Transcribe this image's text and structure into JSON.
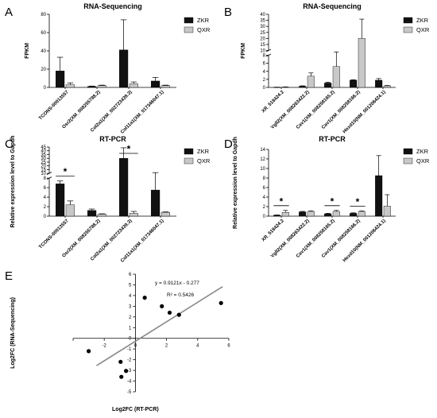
{
  "colors": {
    "ZKR": "#111111",
    "QXR": "#c8c8c8"
  },
  "legend": [
    "ZKR",
    "QXR"
  ],
  "chart_data": [
    {
      "panel": "A",
      "type": "bar",
      "title": "RNA-Sequencing",
      "ylabel": "FPKM",
      "ylim": [
        0,
        80
      ],
      "yticks": [
        0,
        20,
        40,
        60,
        80
      ],
      "categories": [
        "TCONS-00013557",
        "Osr2(XM_008255788.2)",
        "Col2a1(XM_002723439.3)",
        "Col11a1(XM_017346047.1)"
      ],
      "series": [
        {
          "name": "ZKR",
          "values": [
            18,
            1,
            41,
            7
          ],
          "errors": [
            15,
            0.5,
            33,
            4
          ]
        },
        {
          "name": "QXR",
          "values": [
            3,
            2,
            4,
            2
          ],
          "errors": [
            2,
            0.5,
            2,
            0.5
          ]
        }
      ]
    },
    {
      "panel": "B",
      "type": "bar",
      "title": "RNA-Sequencing",
      "ylabel": "FPKM",
      "ylim": [
        0,
        40
      ],
      "ybreak": [
        8,
        10
      ],
      "yticks_lower": [
        0,
        2,
        4,
        6,
        8
      ],
      "yticks_upper": [
        10,
        15,
        20,
        25,
        30,
        35,
        40
      ],
      "categories": [
        "XR_518424.2",
        "Vgll2(XM_008263422.2)",
        "Cav1(XM_008258165.2)",
        "Cav1(XM_008258166.2)",
        "Hoxd10(NM_001206424.1)"
      ],
      "series": [
        {
          "name": "ZKR",
          "values": [
            0.05,
            0.3,
            1.1,
            1.8,
            1.8
          ],
          "errors": [
            0.02,
            0.1,
            0.2,
            0.1,
            0.4
          ]
        },
        {
          "name": "QXR",
          "values": [
            0.1,
            2.8,
            5.2,
            20,
            0.4
          ],
          "errors": [
            0.05,
            0.8,
            3.6,
            16,
            0.1
          ]
        }
      ]
    },
    {
      "panel": "C",
      "type": "bar",
      "title": "RT-PCR",
      "ylabel": "Relative expression level to Gapdh",
      "ylim": [
        0,
        45
      ],
      "ybreak": [
        8,
        10
      ],
      "yticks_lower": [
        0,
        2,
        4,
        6,
        8
      ],
      "yticks_upper": [
        10,
        15,
        20,
        25,
        30,
        35,
        40,
        45
      ],
      "categories": [
        "TCONS-00013557",
        "Osr2(XM_008255788.2)",
        "Col2a1(XM_002723439.3)",
        "Col11a1(XM_017346047.1)"
      ],
      "series": [
        {
          "name": "ZKR",
          "values": [
            6.8,
            1.2,
            30,
            5.5
          ],
          "errors": [
            0.6,
            0.3,
            14,
            5.5
          ]
        },
        {
          "name": "QXR",
          "values": [
            2.4,
            0.4,
            0.6,
            0.8
          ],
          "errors": [
            0.8,
            0.1,
            0.4,
            0.1
          ]
        }
      ],
      "significance": [
        0,
        2
      ],
      "significance_label": "*"
    },
    {
      "panel": "D",
      "type": "bar",
      "title": "RT-PCR",
      "ylabel": "Relative expression level to Gapdh",
      "ylim": [
        0,
        14
      ],
      "yticks": [
        0,
        2,
        4,
        6,
        8,
        10,
        12,
        14
      ],
      "categories": [
        "XR_518424.2",
        "Vgll2(XM_008263422.2)",
        "Cav1(XM_008258165.2)",
        "Cav1(XM_008258166.2)",
        "Hoxd10(NM_001206424.1)"
      ],
      "series": [
        {
          "name": "ZKR",
          "values": [
            0.2,
            0.9,
            0.5,
            0.6,
            8.5
          ],
          "errors": [
            0.05,
            0.1,
            0.1,
            0.1,
            4.2
          ]
        },
        {
          "name": "QXR",
          "values": [
            0.8,
            1.0,
            1.0,
            1.0,
            2.1
          ],
          "errors": [
            0.4,
            0.1,
            0.2,
            0.1,
            2.4
          ]
        }
      ],
      "significance": [
        0,
        2,
        3
      ],
      "significance_label": "*"
    },
    {
      "panel": "E",
      "type": "scatter",
      "xlabel": "Log2FC (RT-PCR)",
      "ylabel": "Log2FC (RNA-Sequencing)",
      "xlim": [
        -4,
        6
      ],
      "ylim": [
        -5,
        6
      ],
      "xticks": [
        -4,
        -2,
        0,
        2,
        4,
        6
      ],
      "yticks": [
        -5,
        -4,
        -3,
        -2,
        -1,
        0,
        1,
        2,
        3,
        4,
        5,
        6
      ],
      "points": [
        [
          -3,
          -1.2
        ],
        [
          -0.95,
          -2.2
        ],
        [
          -0.6,
          -3.05
        ],
        [
          -0.9,
          -3.6
        ],
        [
          0.6,
          3.8
        ],
        [
          1.7,
          3.0
        ],
        [
          2.2,
          2.4
        ],
        [
          2.8,
          2.2
        ],
        [
          5.5,
          3.3
        ]
      ],
      "trendline": {
        "slope": 0.9121,
        "intercept": -0.277
      },
      "equation": "y = 0.9121x - 0.277",
      "r2": "R² = 0.5426"
    }
  ]
}
